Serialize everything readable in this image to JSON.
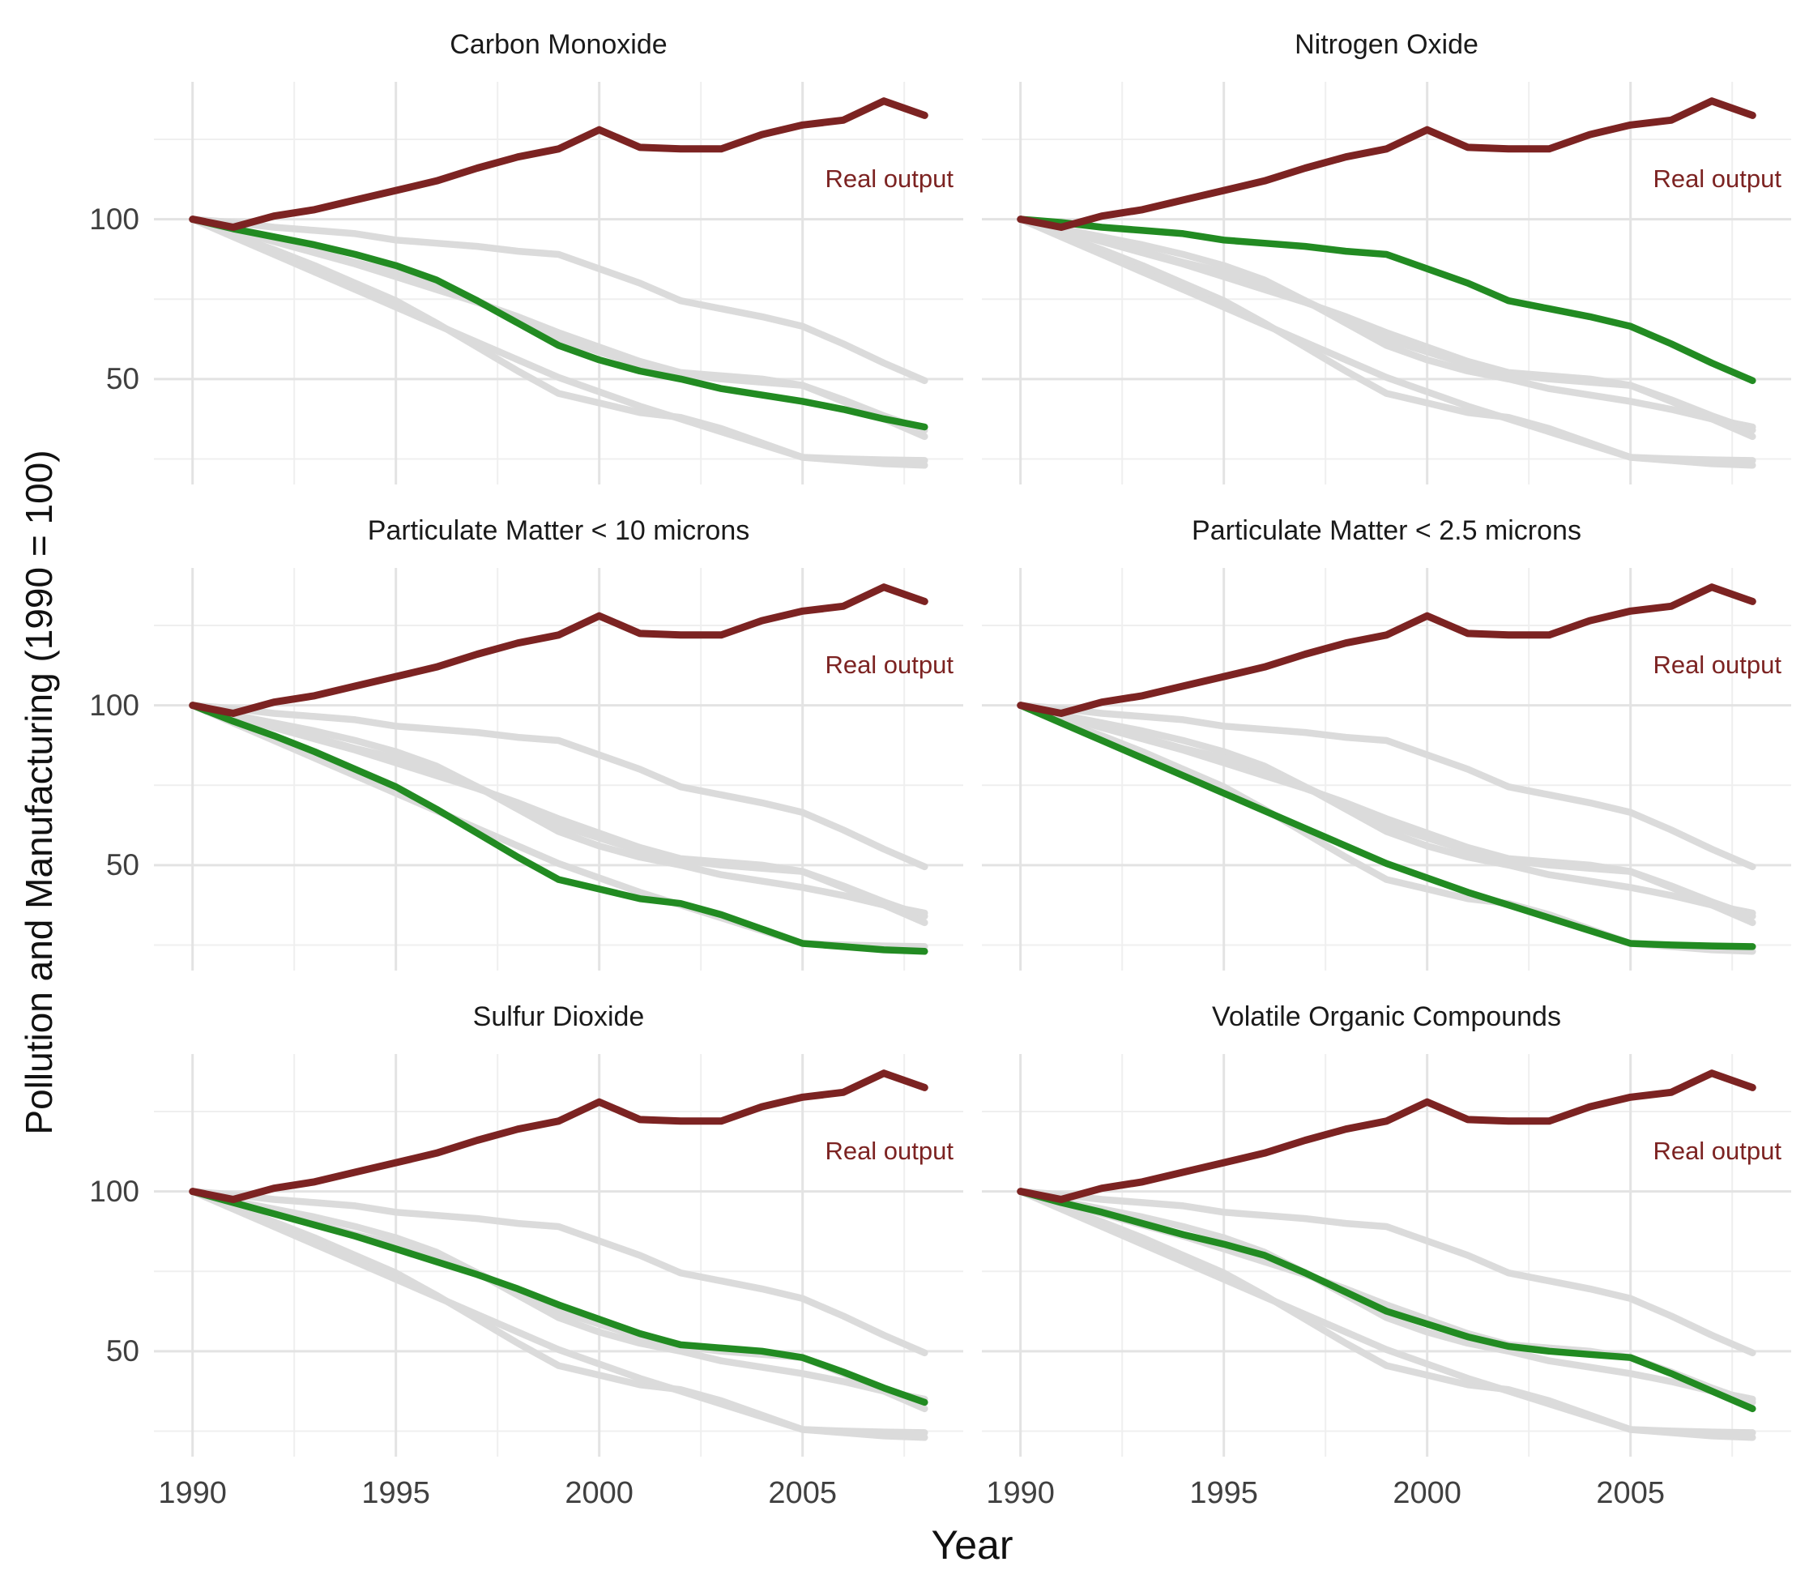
{
  "axes": {
    "x_title": "Year",
    "y_title": "Pollution and Manufacturing (1990 = 100)"
  },
  "colors": {
    "highlight": "#228B22",
    "real_output": "#7C2322",
    "other_series": "#DBDBDB",
    "grid_major": "#E3E3E3",
    "grid_minor": "#EFEFEF",
    "tick_text": "#404040",
    "title_text": "#1A1A1A",
    "background": "#FFFFFF"
  },
  "chart_data": {
    "type": "line",
    "layout": "facet-grid 2 columns x 3 rows, shared axes, no panel borders, light gray major+minor grid on white",
    "xlabel": "Year",
    "ylabel": "Pollution and Manufacturing (1990 = 100)",
    "x": [
      1990,
      1991,
      1992,
      1993,
      1994,
      1995,
      1996,
      1997,
      1998,
      1999,
      2000,
      2001,
      2002,
      2003,
      2004,
      2005,
      2006,
      2007,
      2008
    ],
    "x_ticks": [
      "1990",
      "1995",
      "2000",
      "2005"
    ],
    "x_tick_values": [
      1990,
      1995,
      2000,
      2005
    ],
    "x_minor_ticks": [
      1992.5,
      1997.5,
      2002.5,
      2007.5
    ],
    "y_ticks": [
      "50",
      "100"
    ],
    "y_tick_values": [
      50,
      100
    ],
    "y_minor_ticks": [
      25,
      75,
      125
    ],
    "xlim": [
      1989.05,
      2008.95
    ],
    "ylim": [
      17,
      143
    ],
    "annotation": {
      "text": "Real output",
      "x_year": 2008.5,
      "y_value": 112
    },
    "series": {
      "real_output": {
        "name": "Real output",
        "role": "output",
        "values": [
          100,
          97.5,
          101,
          103,
          106,
          109,
          112,
          116,
          119.5,
          122,
          128,
          122.5,
          122,
          122,
          126.5,
          129.5,
          131,
          137,
          132.5
        ]
      },
      "co": {
        "name": "Carbon Monoxide",
        "role": "pollutant",
        "values": [
          100,
          97,
          94.5,
          92,
          89,
          85.5,
          81,
          74.5,
          67.5,
          60.5,
          56,
          52.5,
          50,
          47,
          45,
          43,
          40.5,
          37.5,
          35
        ]
      },
      "nox": {
        "name": "Nitrogen Oxide",
        "role": "pollutant",
        "values": [
          100,
          99,
          97.5,
          96.5,
          95.5,
          93.5,
          92.5,
          91.5,
          90,
          89,
          84.5,
          80,
          74.5,
          72,
          69.5,
          66.5,
          61,
          55,
          49.5
        ]
      },
      "pm10": {
        "name": "Particulate Matter < 10 microns",
        "role": "pollutant",
        "values": [
          100,
          95,
          90.5,
          85.5,
          80,
          74.5,
          67.5,
          60,
          52.5,
          45.5,
          42.5,
          39.5,
          38,
          34.5,
          30,
          25.5,
          24.5,
          23.5,
          23
        ]
      },
      "pm25": {
        "name": "Particulate Matter < 2.5 microns",
        "role": "pollutant",
        "values": [
          100,
          94.5,
          89,
          83.5,
          78,
          72.5,
          67,
          61.5,
          56,
          50.5,
          46,
          41.5,
          37.5,
          33.5,
          29.5,
          25.5,
          25,
          24.7,
          24.5
        ]
      },
      "so2": {
        "name": "Sulfur Dioxide",
        "role": "pollutant",
        "values": [
          100,
          96.5,
          93,
          89.5,
          86,
          82,
          78,
          74,
          69.5,
          64.5,
          60,
          55.5,
          52,
          51,
          50,
          48,
          43.5,
          38.5,
          34
        ]
      },
      "voc": {
        "name": "Volatile Organic Compounds",
        "role": "pollutant",
        "values": [
          100,
          96.5,
          93.5,
          90,
          86.5,
          83.5,
          80,
          74.5,
          68.5,
          62.5,
          58.5,
          54.5,
          51.5,
          50,
          49,
          48,
          43,
          37.5,
          32
        ]
      }
    },
    "facets": [
      {
        "title": "Carbon Monoxide",
        "highlight": "co"
      },
      {
        "title": "Nitrogen Oxide",
        "highlight": "nox"
      },
      {
        "title": "Particulate Matter < 10 microns",
        "highlight": "pm10"
      },
      {
        "title": "Particulate Matter < 2.5 microns",
        "highlight": "pm25"
      },
      {
        "title": "Sulfur Dioxide",
        "highlight": "so2"
      },
      {
        "title": "Volatile Organic Compounds",
        "highlight": "voc"
      }
    ]
  }
}
